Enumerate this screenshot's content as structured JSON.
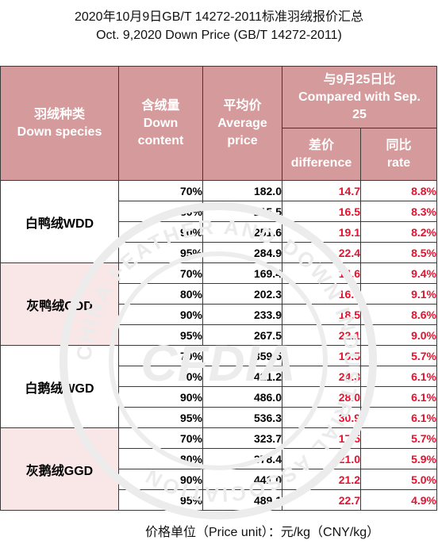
{
  "title": {
    "line1": "2020年10月9日GB/T 14272-2011标准羽绒报价汇总",
    "line2": "Oct. 9,2020 Down Price (GB/T 14272-2011)"
  },
  "headers": {
    "species": [
      "羽绒种类",
      "Down species"
    ],
    "content": [
      "含绒量",
      "Down",
      "content"
    ],
    "avg": [
      "平均价",
      "Average",
      "price"
    ],
    "compare": [
      "与9月25日比",
      "Compared with Sep.",
      "25"
    ],
    "difference": [
      "差价",
      "difference"
    ],
    "rate": [
      "同比",
      "rate"
    ]
  },
  "groups": [
    {
      "species": "白鸭绒WDD",
      "rows": [
        {
          "content": "70%",
          "price": "182.0",
          "diff": "14.7",
          "rate": "8.8%"
        },
        {
          "content": "80%",
          "price": "215.5",
          "diff": "16.5",
          "rate": "8.3%"
        },
        {
          "content": "90%",
          "price": "251.6",
          "diff": "19.1",
          "rate": "8.2%"
        },
        {
          "content": "95%",
          "price": "284.9",
          "diff": "22.4",
          "rate": "8.5%"
        }
      ]
    },
    {
      "species": "灰鸭绒GDD",
      "rows": [
        {
          "content": "70%",
          "price": "169.4",
          "diff": "14.6",
          "rate": "9.4%"
        },
        {
          "content": "80%",
          "price": "202.3",
          "diff": "16.9",
          "rate": "9.1%"
        },
        {
          "content": "90%",
          "price": "233.9",
          "diff": "18.5",
          "rate": "8.6%"
        },
        {
          "content": "95%",
          "price": "267.5",
          "diff": "22.1",
          "rate": "9.0%"
        }
      ]
    },
    {
      "species": "白鹅绒WGD",
      "rows": [
        {
          "content": "70%",
          "price": "359.5",
          "diff": "19.5",
          "rate": "5.7%"
        },
        {
          "content": "80%",
          "price": "421.2",
          "diff": "24.3",
          "rate": "6.1%"
        },
        {
          "content": "90%",
          "price": "486.0",
          "diff": "28.0",
          "rate": "6.1%"
        },
        {
          "content": "95%",
          "price": "536.3",
          "diff": "30.9",
          "rate": "6.1%"
        }
      ]
    },
    {
      "species": "灰鹅绒GGD",
      "rows": [
        {
          "content": "70%",
          "price": "323.7",
          "diff": "17.5",
          "rate": "5.7%"
        },
        {
          "content": "80%",
          "price": "378.4",
          "diff": "21.0",
          "rate": "5.9%"
        },
        {
          "content": "90%",
          "price": "441.0",
          "diff": "21.2",
          "rate": "5.0%"
        },
        {
          "content": "95%",
          "price": "489.1",
          "diff": "22.7",
          "rate": "4.9%"
        }
      ]
    }
  ],
  "footer": "价格单位（Price unit）：元/kg（CNY/kg）",
  "watermark": {
    "icon": "association-seal-watermark",
    "text_ring": "CHINA FEATHER AND DOWN INDUSTRIAL ASSOCIATION",
    "center_text": "CFDIA",
    "color": "#ebebeb"
  },
  "colors": {
    "header_bg": "#d59a9b",
    "header_text": "#ffffff",
    "pink_group_bg": "#f9e6e6",
    "change_text": "#e8112d"
  }
}
